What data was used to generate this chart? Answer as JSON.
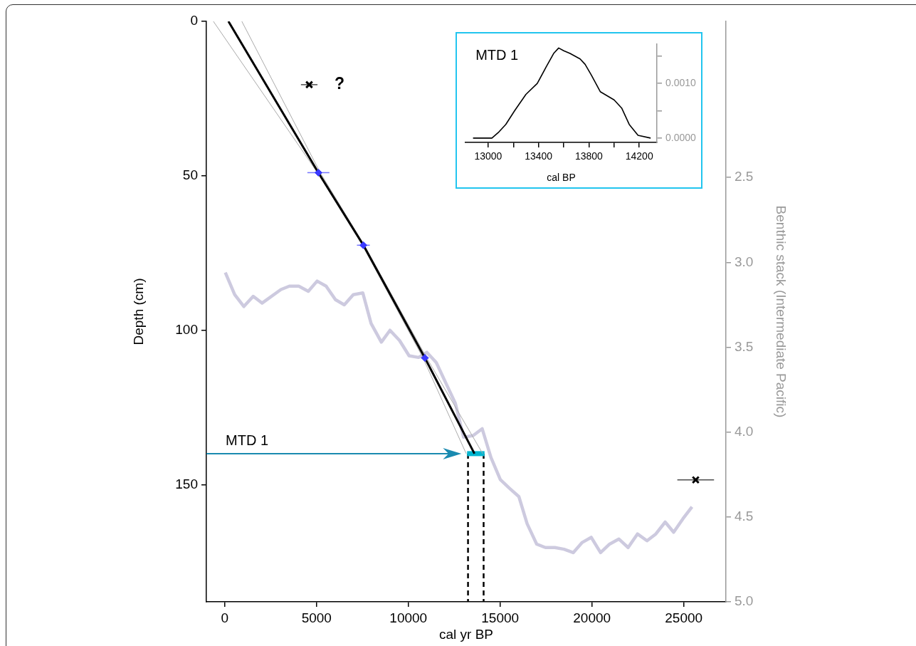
{
  "chart_data": [
    {
      "type": "line",
      "xlabel": "cal yr BP",
      "ylabel": "Depth (cm)",
      "y2label": "Benthic stack (Intermediate Pacific)",
      "xlim": [
        -1000,
        27300
      ],
      "xticks": [
        0,
        5000,
        10000,
        15000,
        20000,
        25000
      ],
      "ylim": [
        188,
        0
      ],
      "yticks": [
        0,
        50,
        100,
        150
      ],
      "y2lim": [
        5.0,
        1.58
      ],
      "y2ticks": [
        2.5,
        {
          "value": 3,
          "label": "3.0"
        },
        3.5,
        {
          "value": 4,
          "label": "4.0"
        },
        4.5,
        {
          "value": 5,
          "label": "5.0"
        }
      ],
      "series": [
        {
          "type": "line",
          "color": "#000000",
          "x": [
            200,
            5100,
            7550,
            10900,
            13600
          ],
          "values": [
            0,
            49,
            72.5,
            109,
            140
          ]
        },
        {
          "type": "line",
          "color": "#aaaaaa",
          "x": [
            -620,
            5050,
            7500,
            10800,
            13150
          ],
          "values": [
            0,
            49,
            72.5,
            109,
            140
          ]
        },
        {
          "type": "line",
          "color": "#aaaaaa",
          "x": [
            930,
            5200,
            7600,
            11000,
            14050
          ],
          "values": [
            0,
            49,
            72.5,
            109,
            140
          ]
        },
        {
          "type": "line",
          "axis": "y2",
          "color": "#cdcadf",
          "x": [
            30,
            540,
            1040,
            1550,
            2030,
            3060,
            3520,
            4030,
            4550,
            5030,
            5520,
            6030,
            6510,
            7000,
            7520,
            7970,
            8530,
            9000,
            9520,
            10040,
            10560,
            11010,
            11520,
            12040,
            12560,
            13010,
            13530,
            14020,
            14500,
            15010,
            15500,
            16020,
            16470,
            16990,
            17470,
            17980,
            18480,
            18980,
            19470,
            19960,
            20470,
            20960,
            21470,
            21970,
            22480,
            23000,
            23480,
            23990,
            24450,
            24960,
            25450
          ],
          "values": [
            3.06,
            3.19,
            3.26,
            3.2,
            3.24,
            3.16,
            3.14,
            3.14,
            3.17,
            3.11,
            3.14,
            3.22,
            3.25,
            3.19,
            3.18,
            3.36,
            3.47,
            3.4,
            3.46,
            3.55,
            3.56,
            3.53,
            3.59,
            3.71,
            3.83,
            4.03,
            4.02,
            3.98,
            4.15,
            4.28,
            4.33,
            4.38,
            4.54,
            4.66,
            4.68,
            4.68,
            4.69,
            4.71,
            4.65,
            4.62,
            4.71,
            4.66,
            4.63,
            4.68,
            4.6,
            4.64,
            4.6,
            4.53,
            4.59,
            4.51,
            4.44
          ]
        },
        {
          "type": "scatter",
          "marker": "diamond",
          "color": "#3a3aff",
          "x": [
            5100,
            7550,
            10900
          ],
          "values": [
            49,
            72.5,
            109
          ],
          "xerrors": [
            600,
            350,
            200
          ]
        },
        {
          "type": "scatter",
          "marker": "cross",
          "color": "#000000",
          "x": [
            4600,
            25650
          ],
          "values": [
            20.5,
            148.5
          ],
          "xerrors": [
            450,
            1000
          ]
        },
        {
          "type": "line",
          "color": "#00b5d0",
          "x": [
            13200,
            14150
          ],
          "values": [
            140,
            140
          ]
        },
        {
          "type": "line",
          "line_style": "dashed",
          "color": "#000000",
          "x": [
            13250,
            13250
          ],
          "values": [
            140,
            188
          ]
        },
        {
          "type": "line",
          "line_style": "dashed",
          "color": "#000000",
          "x": [
            14100,
            14100
          ],
          "values": [
            140,
            188
          ]
        }
      ],
      "annotations": [
        "?",
        "MTD 1"
      ]
    },
    {
      "type": "line",
      "xlabel": "cal BP",
      "annotations": [
        "MTD 1"
      ],
      "xlim": [
        12820,
        14340
      ],
      "xticks": [
        13000,
        {
          "value": 13200,
          "label": null
        },
        13400,
        {
          "value": 13600,
          "label": null
        },
        13800,
        {
          "value": 14000,
          "label": null
        },
        14200
      ],
      "y2lim": [
        -8e-05,
        0.00172
      ],
      "y2ticks": [
        {
          "value": 0,
          "label": "0.0000"
        },
        {
          "value": 0.0005,
          "label": null
        },
        {
          "value": 0.001,
          "label": "0.0010"
        },
        {
          "value": 0.0015,
          "label": null
        }
      ],
      "series": [
        {
          "axis": "y2",
          "color": "#000000",
          "x": [
            12880,
            13030,
            13080,
            13140,
            13210,
            13300,
            13390,
            13460,
            13520,
            13560,
            13600,
            13650,
            13730,
            13770,
            13820,
            13890,
            14000,
            14060,
            14120,
            14190,
            14290
          ],
          "values": [
            0,
            0,
            0.0001,
            0.00025,
            0.0005,
            0.0008,
            0.001,
            0.0013,
            0.00155,
            0.00165,
            0.0016,
            0.00155,
            0.00145,
            0.00135,
            0.00115,
            0.00085,
            0.0007,
            0.00055,
            0.00025,
            5e-05,
            0
          ]
        }
      ]
    }
  ]
}
